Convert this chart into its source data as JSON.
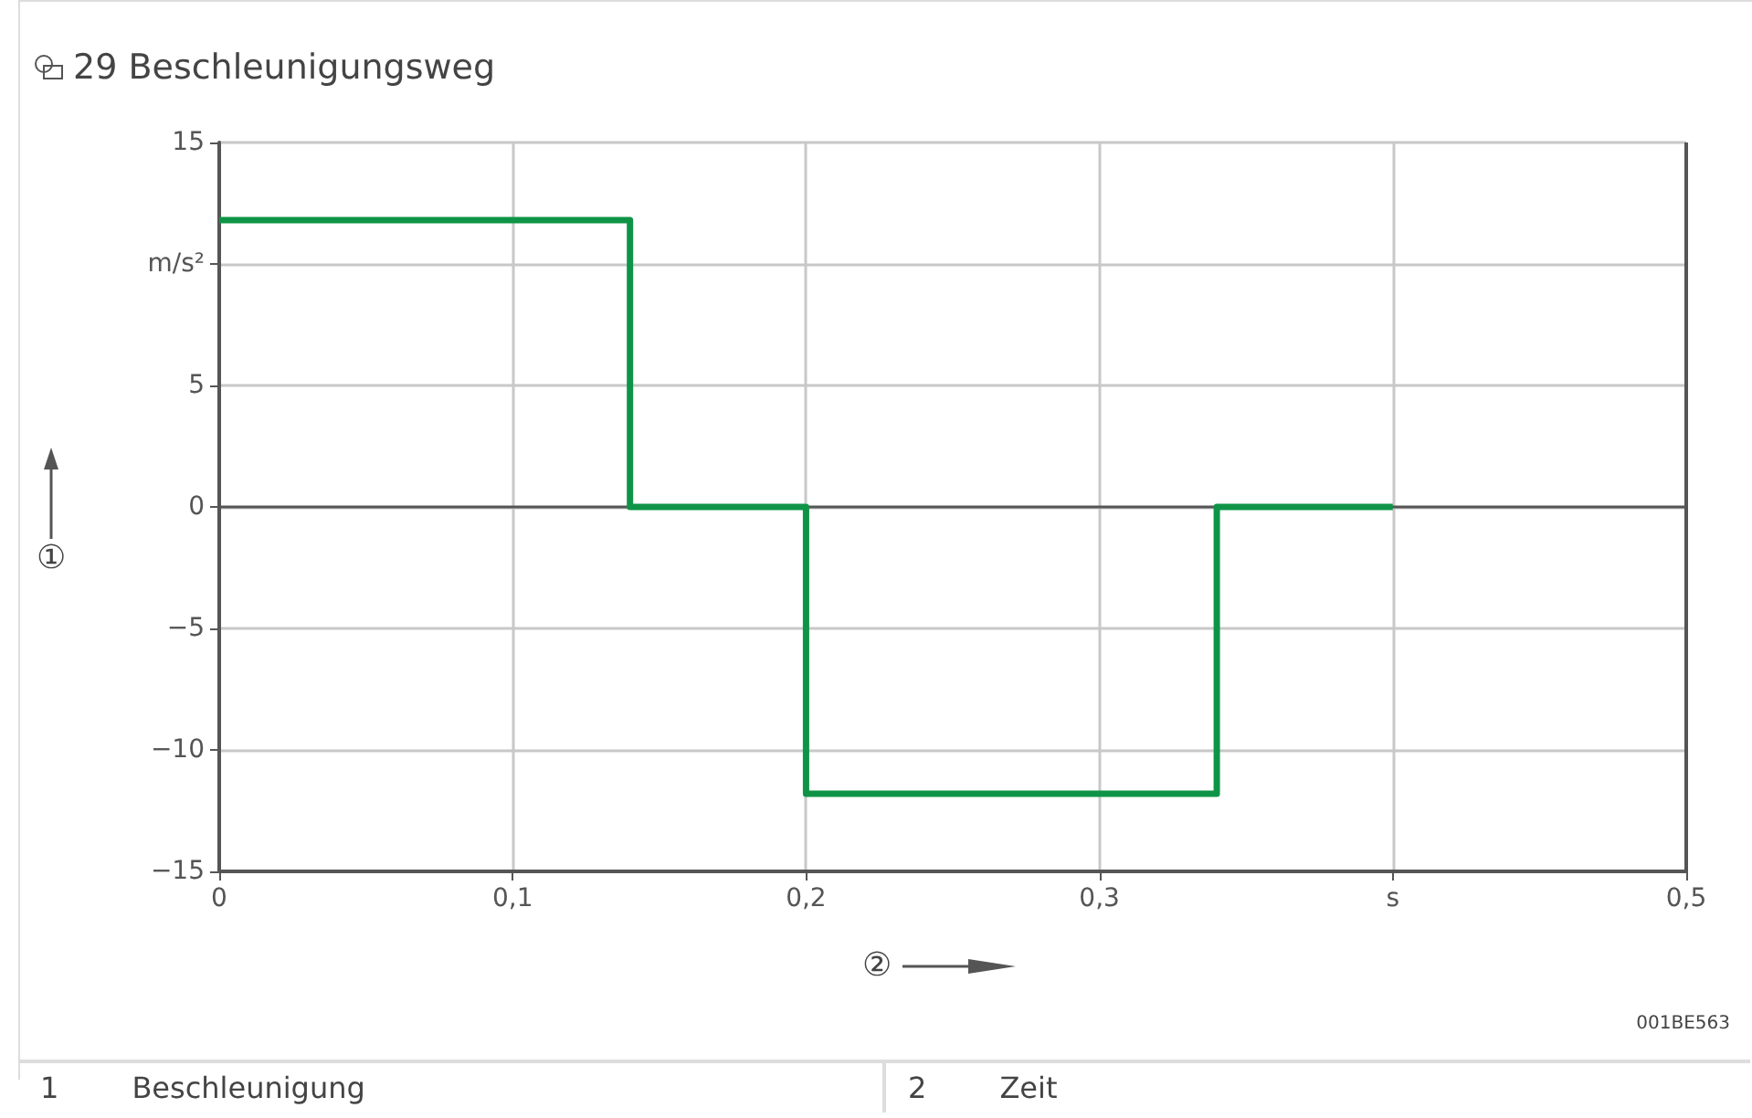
{
  "chart_data": {
    "type": "step",
    "title": "29 Beschleunigungsweg",
    "xlabel": "②",
    "ylabel": "①",
    "x": [
      0,
      0.14,
      0.2,
      0.34,
      0.4
    ],
    "series": [
      {
        "color": "#0f9447",
        "values": [
          11.8,
          0,
          -11.8,
          0,
          0
        ]
      }
    ],
    "xlim": [
      0,
      0.5
    ],
    "xticks": [
      0,
      {
        "value": 0.1,
        "label": "0,1"
      },
      {
        "value": 0.2,
        "label": "0,2"
      },
      {
        "value": 0.3,
        "label": "0,3"
      },
      {
        "value": 0.4,
        "label": "s"
      },
      {
        "value": 0.5,
        "label": "0,5"
      }
    ],
    "ylim": [
      -15,
      15
    ],
    "yticks": [
      {
        "value": -15,
        "label": "−15"
      },
      {
        "value": -10,
        "label": "−10"
      },
      {
        "value": -5,
        "label": "−5"
      },
      0,
      5,
      {
        "value": 10,
        "label": "m/s²"
      },
      15
    ],
    "grid": true,
    "marker": "none",
    "line_style": "solid",
    "annotations": [
      "001BE563",
      "1",
      "Beschleunigung",
      "2",
      "Zeit"
    ]
  }
}
